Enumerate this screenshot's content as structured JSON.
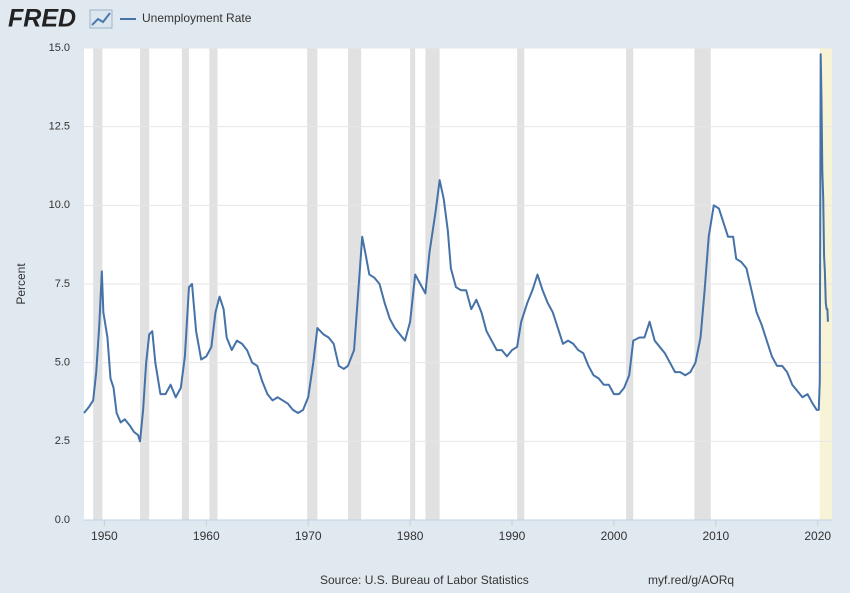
{
  "chart_data": {
    "type": "line",
    "brand": "FRED",
    "title": "Unemployment Rate",
    "ylabel": "Percent",
    "source": "Source: U.S. Bureau of Labor Statistics",
    "link": "myf.red/g/AORq",
    "series": [
      {
        "name": "Unemployment Rate",
        "color": "#4572a7",
        "x": [
          1948.0,
          1948.5,
          1948.9,
          1949.2,
          1949.5,
          1949.75,
          1949.9,
          1950.3,
          1950.6,
          1950.9,
          1951.2,
          1951.6,
          1952.0,
          1952.5,
          1952.9,
          1953.3,
          1953.5,
          1953.8,
          1954.1,
          1954.4,
          1954.7,
          1955.0,
          1955.5,
          1956.0,
          1956.5,
          1957.0,
          1957.5,
          1957.9,
          1958.3,
          1958.6,
          1959.0,
          1959.5,
          1960.0,
          1960.5,
          1960.9,
          1961.3,
          1961.7,
          1962.0,
          1962.5,
          1963.0,
          1963.5,
          1964.0,
          1964.5,
          1965.0,
          1965.5,
          1966.0,
          1966.5,
          1967.0,
          1967.5,
          1968.0,
          1968.5,
          1969.0,
          1969.5,
          1970.0,
          1970.5,
          1970.9,
          1971.5,
          1972.0,
          1972.5,
          1973.0,
          1973.5,
          1973.9,
          1974.5,
          1974.9,
          1975.3,
          1975.6,
          1976.0,
          1976.5,
          1977.0,
          1977.5,
          1978.0,
          1978.5,
          1979.0,
          1979.5,
          1980.0,
          1980.5,
          1981.0,
          1981.5,
          1981.9,
          1982.5,
          1982.9,
          1983.3,
          1983.7,
          1984.0,
          1984.5,
          1985.0,
          1985.5,
          1986.0,
          1986.5,
          1987.0,
          1987.5,
          1988.0,
          1988.5,
          1989.0,
          1989.5,
          1990.0,
          1990.5,
          1990.9,
          1991.5,
          1992.0,
          1992.5,
          1993.0,
          1993.5,
          1994.0,
          1994.5,
          1995.0,
          1995.5,
          1996.0,
          1996.5,
          1997.0,
          1997.5,
          1998.0,
          1998.5,
          1999.0,
          1999.5,
          2000.0,
          2000.5,
          2001.0,
          2001.5,
          2001.9,
          2002.5,
          2003.0,
          2003.5,
          2004.0,
          2004.5,
          2005.0,
          2005.5,
          2006.0,
          2006.5,
          2007.0,
          2007.5,
          2008.0,
          2008.5,
          2008.9,
          2009.3,
          2009.8,
          2010.3,
          2010.8,
          2011.2,
          2011.7,
          2012.0,
          2012.5,
          2013.0,
          2013.5,
          2014.0,
          2014.5,
          2015.0,
          2015.5,
          2016.0,
          2016.5,
          2017.0,
          2017.5,
          2018.0,
          2018.5,
          2019.0,
          2019.5,
          2019.9,
          2020.1,
          2020.2,
          2020.29,
          2020.37,
          2020.45,
          2020.54,
          2020.62,
          2020.7,
          2020.79,
          2020.87,
          2020.95,
          2021.0
        ],
        "values": [
          3.4,
          3.6,
          3.8,
          4.7,
          6.2,
          7.9,
          6.6,
          5.8,
          4.5,
          4.2,
          3.4,
          3.1,
          3.2,
          3.0,
          2.8,
          2.7,
          2.5,
          3.5,
          5.0,
          5.9,
          6.0,
          5.0,
          4.0,
          4.0,
          4.3,
          3.9,
          4.2,
          5.2,
          7.4,
          7.5,
          6.0,
          5.1,
          5.2,
          5.5,
          6.6,
          7.1,
          6.7,
          5.8,
          5.4,
          5.7,
          5.6,
          5.4,
          5.0,
          4.9,
          4.4,
          4.0,
          3.8,
          3.9,
          3.8,
          3.7,
          3.5,
          3.4,
          3.5,
          3.9,
          5.0,
          6.1,
          5.9,
          5.8,
          5.6,
          4.9,
          4.8,
          4.9,
          5.4,
          7.2,
          9.0,
          8.5,
          7.8,
          7.7,
          7.5,
          6.9,
          6.4,
          6.1,
          5.9,
          5.7,
          6.3,
          7.8,
          7.5,
          7.2,
          8.5,
          9.8,
          10.8,
          10.2,
          9.2,
          8.0,
          7.4,
          7.3,
          7.3,
          6.7,
          7.0,
          6.6,
          6.0,
          5.7,
          5.4,
          5.4,
          5.2,
          5.4,
          5.5,
          6.3,
          6.9,
          7.3,
          7.8,
          7.3,
          6.9,
          6.6,
          6.1,
          5.6,
          5.7,
          5.6,
          5.4,
          5.3,
          4.9,
          4.6,
          4.5,
          4.3,
          4.3,
          4.0,
          4.0,
          4.2,
          4.6,
          5.7,
          5.8,
          5.8,
          6.3,
          5.7,
          5.5,
          5.3,
          5.0,
          4.7,
          4.7,
          4.6,
          4.7,
          5.0,
          5.8,
          7.3,
          9.0,
          10.0,
          9.9,
          9.4,
          9.0,
          9.0,
          8.3,
          8.2,
          8.0,
          7.3,
          6.6,
          6.2,
          5.7,
          5.2,
          4.9,
          4.9,
          4.7,
          4.3,
          4.1,
          3.9,
          4.0,
          3.7,
          3.5,
          3.5,
          4.4,
          14.8,
          13.3,
          11.1,
          10.2,
          8.4,
          7.9,
          6.9,
          6.7,
          6.7,
          6.3
        ]
      }
    ],
    "recessions": [
      [
        1948.9,
        1949.8
      ],
      [
        1953.5,
        1954.4
      ],
      [
        1957.6,
        1958.3
      ],
      [
        1960.3,
        1961.1
      ],
      [
        1969.9,
        1970.9
      ],
      [
        1973.9,
        1975.2
      ],
      [
        1980.0,
        1980.5
      ],
      [
        1981.5,
        1982.9
      ],
      [
        1990.5,
        1991.2
      ],
      [
        2001.2,
        2001.9
      ],
      [
        2007.9,
        2009.5
      ]
    ],
    "recession_color": "#e1e1e1",
    "highlight": [
      2020.2,
      2021.4
    ],
    "highlight_color": "#f7f3d7",
    "xlim": [
      1948.0,
      2021.4
    ],
    "xticks": [
      1950,
      1960,
      1970,
      1980,
      1990,
      2000,
      2010,
      2020
    ],
    "ylim": [
      0,
      15
    ],
    "yticks": [
      {
        "value": 0,
        "label": "0.0"
      },
      {
        "value": 2.5,
        "label": "2.5"
      },
      {
        "value": 5,
        "label": "5.0"
      },
      {
        "value": 7.5,
        "label": "7.5"
      },
      {
        "value": 10,
        "label": "10.0"
      },
      {
        "value": 12.5,
        "label": "12.5"
      },
      {
        "value": 15,
        "label": "15.0"
      }
    ],
    "grid": true
  }
}
